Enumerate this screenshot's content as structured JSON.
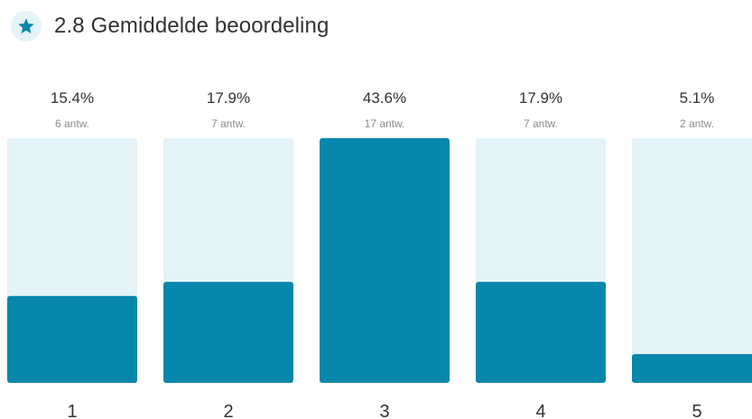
{
  "header": {
    "icon": "star-icon",
    "rating": "2.8",
    "label": "Gemiddelde beoordeling"
  },
  "colors": {
    "accent": "#0787ab",
    "track": "#e3f3f8",
    "badge": "#e3f3f8"
  },
  "chart_data": {
    "type": "bar",
    "categories": [
      "1",
      "2",
      "3",
      "4",
      "5"
    ],
    "values": [
      15.4,
      17.9,
      43.6,
      17.9,
      5.1
    ],
    "percent_labels": [
      "15.4%",
      "17.9%",
      "43.6%",
      "17.9%",
      "5.1%"
    ],
    "count_labels": [
      "6 antw.",
      "7 antw.",
      "17 antw.",
      "7 antw.",
      "2 antw."
    ],
    "ylim": [
      0,
      100
    ],
    "grid": false,
    "legend": "none"
  }
}
